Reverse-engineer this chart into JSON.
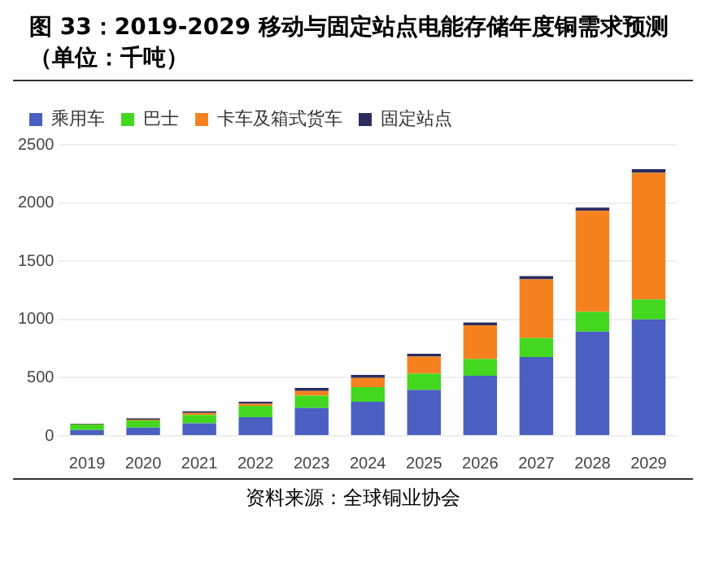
{
  "chart_data": {
    "type": "bar",
    "title": "图 33：2019-2029 移动与固定站点电能存储年度铜需求预测（单位：千吨）",
    "categories": [
      "2019",
      "2020",
      "2021",
      "2022",
      "2023",
      "2024",
      "2025",
      "2026",
      "2027",
      "2028",
      "2029"
    ],
    "series": [
      {
        "name": "乘用车",
        "color": "#4a5fc1",
        "values": [
          50,
          72,
          108,
          161,
          240,
          294,
          394,
          516,
          678,
          896,
          1000
        ]
      },
      {
        "name": "巴士",
        "color": "#43d81f",
        "values": [
          47,
          61,
          71,
          97,
          105,
          125,
          140,
          144,
          161,
          169,
          172
        ]
      },
      {
        "name": "卡车及箱式货车",
        "color": "#f5821f",
        "values": [
          2,
          7,
          18,
          18,
          40,
          79,
          147,
          290,
          505,
          867,
          1087
        ]
      },
      {
        "name": "固定站点",
        "color": "#2b2d5e",
        "values": [
          5,
          10,
          14,
          18,
          27,
          25,
          25,
          25,
          29,
          29,
          32
        ]
      }
    ],
    "stacked": true,
    "ylim": [
      0,
      2500
    ],
    "yticks": [
      0,
      500,
      1000,
      1500,
      2000,
      2500
    ],
    "grid": "y",
    "legend": "top left",
    "annotations": [
      "资料来源：全球铜业协会"
    ]
  }
}
